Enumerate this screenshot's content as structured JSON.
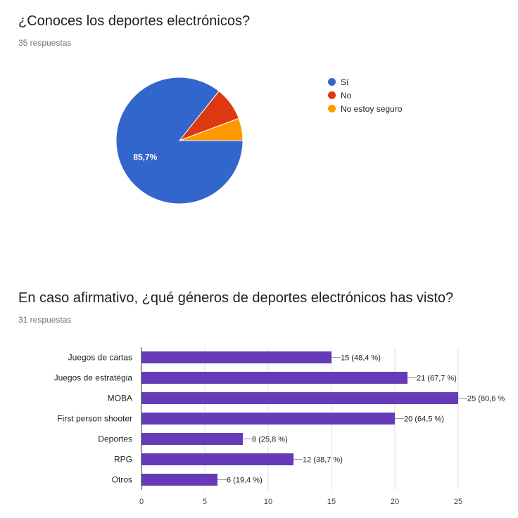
{
  "questions": [
    {
      "title": "¿Conoces los deportes electrónicos?",
      "responses": "35 respuestas"
    },
    {
      "title": "En caso afirmativo, ¿qué géneros de deportes electrónicos has visto?",
      "responses": "31 respuestas"
    }
  ],
  "chart_data": [
    {
      "type": "pie",
      "title": "¿Conoces los deportes electrónicos?",
      "labels": [
        "Sí",
        "No",
        "No estoy seguro"
      ],
      "values": [
        30,
        3,
        2
      ],
      "percent_labels": [
        "85,7%",
        "",
        ""
      ],
      "colors": [
        "#3366cc",
        "#dc3912",
        "#ff9900"
      ],
      "legend": "right"
    },
    {
      "type": "bar",
      "orientation": "horizontal",
      "title": "En caso afirmativo, ¿qué géneros de deportes electrónicos has visto?",
      "categories": [
        "Juegos de cartas",
        "Juegos de estratégia",
        "MOBA",
        "First person shooter",
        "Deportes",
        "RPG",
        "Otros"
      ],
      "values": [
        15,
        21,
        25,
        20,
        8,
        12,
        6
      ],
      "data_labels": [
        "15 (48,4 %)",
        "21 (67,7 %)",
        "25 (80,6 %",
        "20 (64,5 %)",
        "8 (25,8 %)",
        "12 (38,7 %)",
        "6 (19,4 %)"
      ],
      "xlim": [
        0,
        25
      ],
      "xticks": [
        0,
        5,
        10,
        15,
        20,
        25
      ],
      "color": "#673ab7",
      "grid": true
    }
  ]
}
